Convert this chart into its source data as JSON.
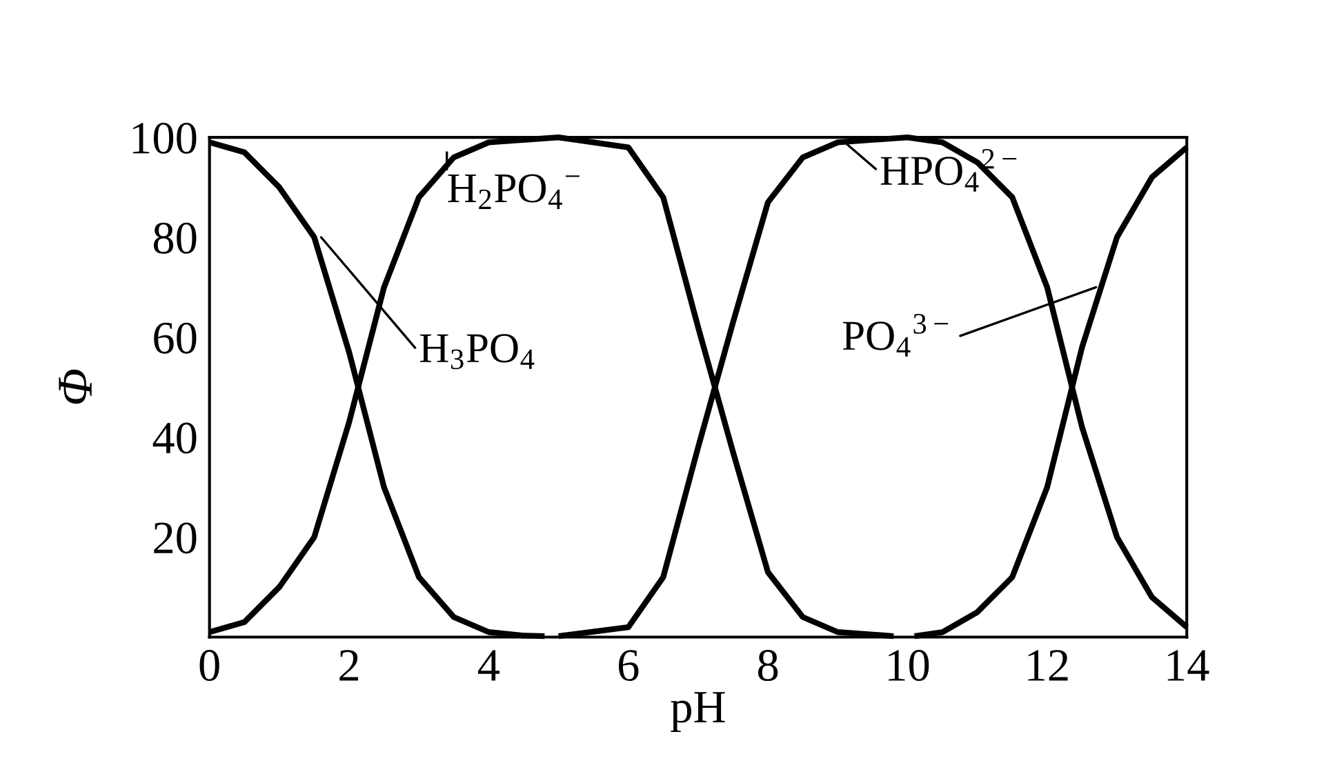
{
  "chart_data": {
    "type": "line",
    "xlabel": "pH",
    "ylabel": "Φ",
    "xlim": [
      0,
      14
    ],
    "ylim": [
      0,
      100
    ],
    "xticks": [
      0,
      2,
      4,
      6,
      8,
      10,
      12,
      14
    ],
    "yticks": [
      20,
      40,
      60,
      80,
      100
    ],
    "grid": false,
    "legend": false,
    "marker": "none",
    "line_style": "solid",
    "series": [
      {
        "color": "#000000",
        "x": [
          0,
          0.5,
          1,
          1.5,
          2,
          2.5,
          3,
          3.5,
          4,
          4.5,
          4.8
        ],
        "values": [
          99,
          97,
          90,
          80,
          57,
          30,
          12,
          4,
          1,
          0.3,
          0.2
        ]
      },
      {
        "color": "#000000",
        "x": [
          0,
          0.5,
          1,
          1.5,
          2,
          2.5,
          3,
          3.5,
          4,
          5,
          6,
          6.5,
          7,
          7.5,
          8,
          8.5,
          9,
          9.8
        ],
        "values": [
          1,
          3,
          10,
          20,
          43,
          70,
          88,
          96,
          99,
          100,
          98,
          88,
          62,
          37,
          13,
          4,
          1,
          0.2
        ]
      },
      {
        "color": "#000000",
        "x": [
          5,
          6,
          6.5,
          7,
          7.5,
          8,
          8.5,
          9,
          10,
          10.5,
          11,
          11.5,
          12,
          12.5,
          13,
          13.5,
          14
        ],
        "values": [
          0.2,
          2,
          12,
          38,
          63,
          87,
          96,
          99,
          100,
          99,
          95,
          88,
          70,
          42,
          20,
          8,
          2
        ]
      },
      {
        "color": "#000000",
        "x": [
          10.1,
          10.5,
          11,
          11.5,
          12,
          12.5,
          13,
          13.5,
          14
        ],
        "values": [
          0.2,
          1,
          5,
          12,
          30,
          58,
          80,
          92,
          98
        ]
      }
    ],
    "annotations": [
      {
        "text": "H$_{3}$PO$_{4}$",
        "x": 1.6,
        "y": 80
      },
      {
        "text": "H$_{2}$PO$_{4}$$^{−}$",
        "x": 3.4,
        "y": 97
      },
      {
        "text": "HPO$_{4}$$^{2−}$",
        "x": 9.1,
        "y": 99
      },
      {
        "text": "PO$_{4}$$^{3−}$",
        "x": 12.7,
        "y": 70
      }
    ]
  }
}
